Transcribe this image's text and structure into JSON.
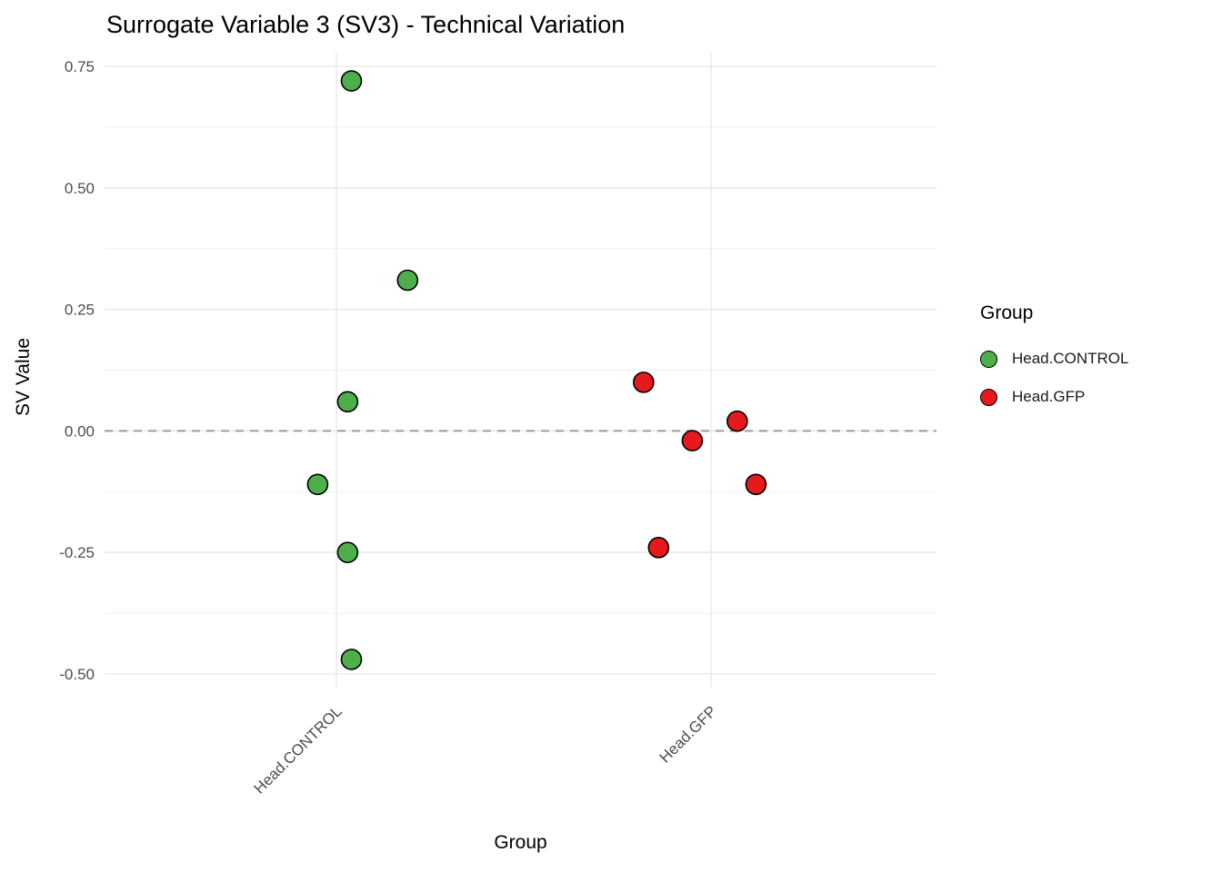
{
  "chart": {
    "title": "Surrogate Variable 3 (SV3) - Technical Variation",
    "xlabel": "Group",
    "ylabel": "SV Value"
  },
  "legend": {
    "title": "Group",
    "items": [
      {
        "label": "Head.CONTROL",
        "color": "#4DAF4A"
      },
      {
        "label": "Head.GFP",
        "color": "#E41A1C"
      }
    ]
  },
  "chart_data": {
    "type": "scatter",
    "title": "Surrogate Variable 3 (SV3) - Technical Variation",
    "xlabel": "Group",
    "ylabel": "SV Value",
    "categories": [
      "Head.CONTROL",
      "Head.GFP"
    ],
    "y_ticks": [
      0.75,
      0.5,
      0.25,
      0,
      -0.25,
      -0.5
    ],
    "y_tick_labels": [
      "0.75",
      "0.50",
      "0.25",
      "0.00",
      "-0.25",
      "-0.50"
    ],
    "y_minor_ticks": [
      0.625,
      0.375,
      0.125,
      -0.125,
      -0.375
    ],
    "ylim": [
      -0.53,
      0.78
    ],
    "reference_line_y": 0,
    "legend_position": "right",
    "grid": true,
    "series": [
      {
        "name": "Head.CONTROL",
        "color": "#4DAF4A",
        "points": [
          {
            "x": 1.04,
            "y": 0.72
          },
          {
            "x": 1.19,
            "y": 0.31
          },
          {
            "x": 1.03,
            "y": 0.06
          },
          {
            "x": 0.95,
            "y": -0.11
          },
          {
            "x": 1.03,
            "y": -0.25
          },
          {
            "x": 1.04,
            "y": -0.47
          }
        ]
      },
      {
        "name": "Head.GFP",
        "color": "#E41A1C",
        "points": [
          {
            "x": 1.82,
            "y": 0.1
          },
          {
            "x": 2.07,
            "y": 0.02
          },
          {
            "x": 1.95,
            "y": -0.02
          },
          {
            "x": 2.12,
            "y": -0.11
          },
          {
            "x": 1.86,
            "y": -0.24
          }
        ]
      }
    ],
    "point_radius": 11,
    "point_stroke": "#000000",
    "grid_color": "#E6E6E6",
    "minor_grid_color": "#F1F1F1",
    "dashed_line_color": "#9A9A9A",
    "tick_label_color": "#4d4d4d"
  }
}
